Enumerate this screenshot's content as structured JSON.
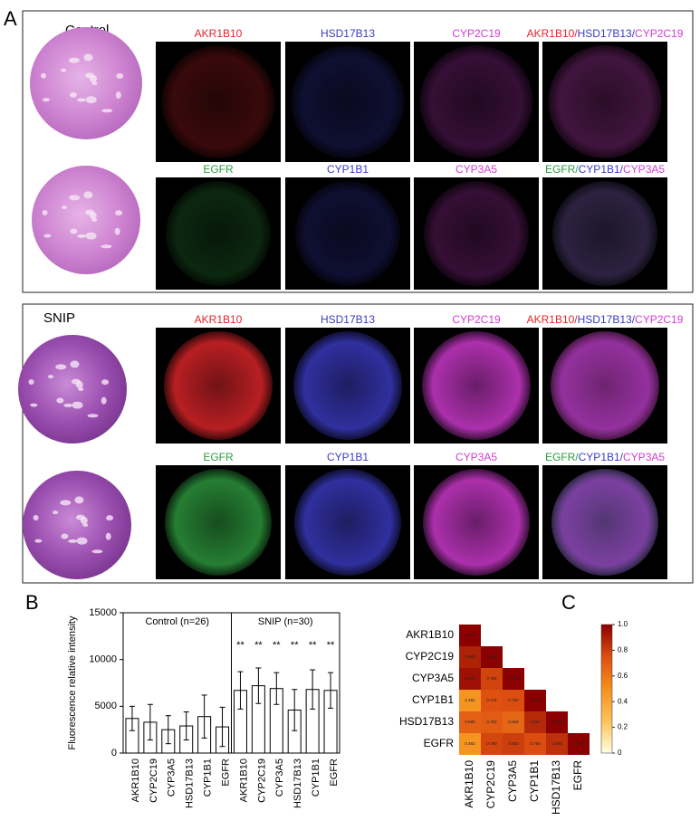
{
  "panel_a": {
    "label": "A",
    "separator": "/",
    "groups": [
      {
        "title": "Control",
        "rows": [
          {
            "channels": [
              {
                "name": "AKR1B10",
                "color": "#e3262b"
              },
              {
                "name": "HSD17B13",
                "color": "#3b3bc4"
              },
              {
                "name": "CYP2C19",
                "color": "#d43bd4"
              }
            ]
          },
          {
            "channels": [
              {
                "name": "EGFR",
                "color": "#2e9b3e"
              },
              {
                "name": "CYP1B1",
                "color": "#3b3bc4"
              },
              {
                "name": "CYP3A5",
                "color": "#d43bd4"
              }
            ]
          }
        ]
      },
      {
        "title": "SNIP",
        "rows": [
          {
            "channels": [
              {
                "name": "AKR1B10",
                "color": "#e3262b"
              },
              {
                "name": "HSD17B13",
                "color": "#3b3bc4"
              },
              {
                "name": "CYP2C19",
                "color": "#d43bd4"
              }
            ]
          },
          {
            "channels": [
              {
                "name": "EGFR",
                "color": "#2e9b3e"
              },
              {
                "name": "CYP1B1",
                "color": "#3b3bc4"
              },
              {
                "name": "CYP3A5",
                "color": "#d43bd4"
              }
            ]
          }
        ]
      }
    ]
  },
  "chart_data": [
    {
      "type": "bar",
      "label": "B",
      "ylabel": "Fluorescence relative intensity",
      "ylim": [
        0,
        15000
      ],
      "yticks": [
        0,
        5000,
        10000,
        15000
      ],
      "color": "#ffffff",
      "groups": [
        {
          "label": "Control (n=26)",
          "categories": [
            "AKR1B10",
            "CYP2C19",
            "CYP3A5",
            "HSD17B13",
            "CYP1B1",
            "EGFR"
          ],
          "values": [
            3700,
            3300,
            2500,
            2900,
            3900,
            2800
          ],
          "errors": [
            1300,
            1900,
            1500,
            1500,
            2300,
            2100
          ],
          "significance": [
            null,
            null,
            null,
            null,
            null,
            null
          ]
        },
        {
          "label": "SNIP (n=30)",
          "categories": [
            "AKR1B10",
            "CYP2C19",
            "CYP3A5",
            "HSD17B13",
            "CYP1B1",
            "EGFR"
          ],
          "values": [
            6700,
            7200,
            6900,
            4600,
            6800,
            6700
          ],
          "errors": [
            2000,
            1900,
            1700,
            2200,
            2100,
            1900
          ],
          "significance": [
            "**",
            "**",
            "**",
            "**",
            "**",
            "**"
          ]
        }
      ]
    },
    {
      "type": "heatmap",
      "label": "C",
      "labels": [
        "AKR1B10",
        "CYP2C19",
        "CYP3A5",
        "CYP1B1",
        "HSD17B13",
        "EGFR"
      ],
      "values": [
        [
          1.0
        ],
        [
          0.893,
          1.0
        ],
        [
          0.945,
          0.784,
          1.0
        ],
        [
          0.482,
          0.744,
          0.752,
          1.0
        ],
        [
          0.685,
          0.702,
          0.663,
          0.867,
          1.0
        ],
        [
          0.482,
          0.78,
          0.803,
          0.759,
          0.848,
          1.0
        ]
      ],
      "value_labels": [
        [
          "1.000"
        ],
        [
          "0.893",
          "1.000"
        ],
        [
          "0.945",
          "0.784",
          "1.000"
        ],
        [
          "0.482",
          "0.744",
          "0.752",
          "1.000"
        ],
        [
          "0.685",
          "0.702",
          "0.663",
          "0.867",
          "1.000"
        ],
        [
          "0.482",
          "0.780",
          "0.803",
          "0.759",
          "0.848",
          "1.000"
        ]
      ],
      "colormap": [
        "#ffffe0",
        "#fdc25a",
        "#f5901e",
        "#dd4f10",
        "#8b0000"
      ],
      "colorbar": {
        "lim": [
          0,
          1
        ],
        "ticks": [
          0,
          0.2,
          0.4,
          0.6,
          0.8,
          {
            "value": 1,
            "label": "1.0"
          }
        ]
      }
    }
  ]
}
